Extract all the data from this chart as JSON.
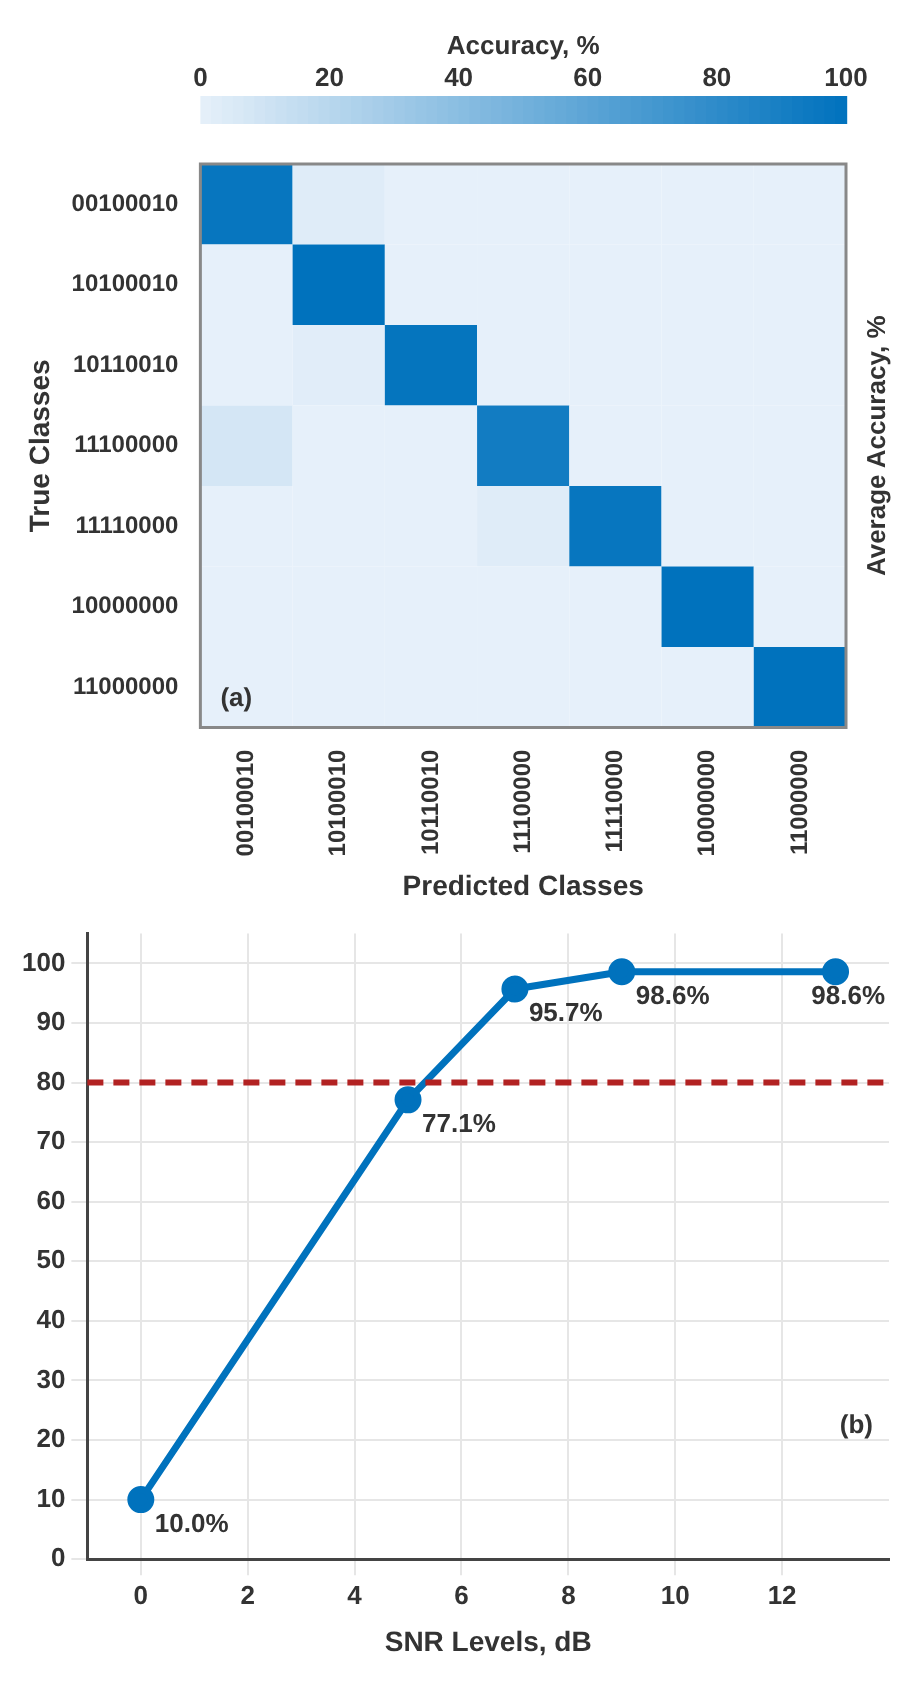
{
  "chart_data": [
    {
      "type": "heatmap",
      "clabel": "Accuracy, %",
      "xlabel": "Predicted Classes",
      "ylabel": "True Classes",
      "y2label": "Average Accuracy, %",
      "categories": [
        "00100010",
        "10100010",
        "10110010",
        "11100000",
        "11110000",
        "10000000",
        "11000000"
      ],
      "y_categories": [
        "00100010",
        "10100010",
        "10110010",
        "11100000",
        "11110000",
        "10000000",
        "11000000"
      ],
      "cells": [
        [
          97,
          3,
          0,
          0,
          0,
          0,
          0
        ],
        [
          0,
          100,
          0,
          0,
          0,
          0,
          0
        ],
        [
          0,
          2,
          98,
          0,
          0,
          0,
          0
        ],
        [
          8,
          0,
          0,
          92,
          0,
          0,
          0
        ],
        [
          0,
          0,
          0,
          3,
          97,
          0,
          0
        ],
        [
          0,
          0,
          0,
          0,
          0,
          100,
          0
        ],
        [
          0,
          0,
          0,
          0,
          0,
          0,
          100
        ]
      ],
      "clim": [
        0,
        100
      ],
      "cticks": [
        0,
        20,
        40,
        60,
        80,
        100
      ],
      "annotations": [
        "(a)"
      ]
    },
    {
      "type": "line",
      "xlabel": "SNR Levels, dB",
      "x": [
        0,
        5,
        7,
        9,
        13
      ],
      "series": [
        {
          "color": "#0072bd",
          "values": [
            10.0,
            77.1,
            95.7,
            98.6,
            98.6
          ],
          "value_labels": [
            "10.0%",
            "77.1%",
            "95.7%",
            "98.6%",
            "98.6%"
          ]
        }
      ],
      "xlim": [
        -1,
        14
      ],
      "xticks": [
        0,
        2,
        4,
        6,
        8,
        10,
        12
      ],
      "ylim": [
        0,
        105
      ],
      "yticks": [
        0,
        10,
        20,
        30,
        40,
        50,
        60,
        70,
        80,
        90,
        100
      ],
      "grid": true,
      "marker": "circle",
      "line_style": "solid",
      "ref_lines": [
        {
          "axis": "y",
          "value": 80,
          "color": "#b22222",
          "line_style": "dashed"
        }
      ],
      "annotations": [
        "(b)"
      ]
    }
  ]
}
